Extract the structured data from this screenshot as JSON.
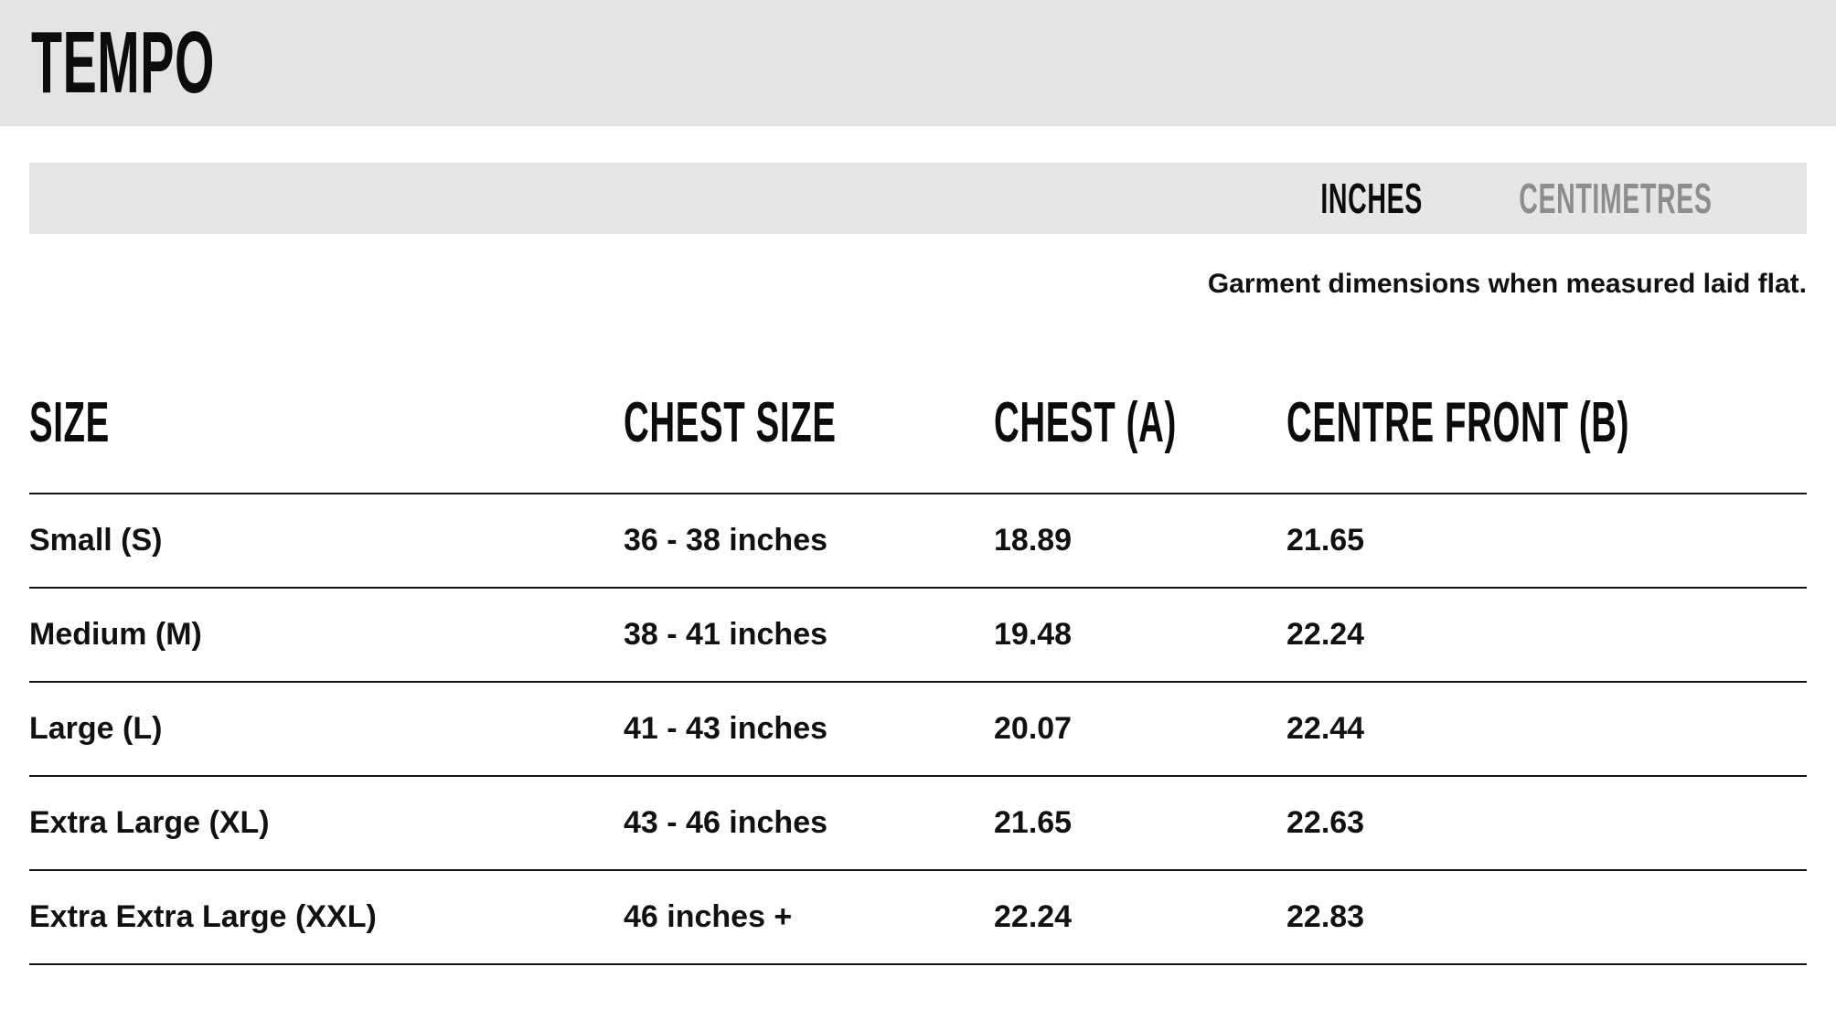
{
  "page": {
    "brand": "TEMPO"
  },
  "unit_toggle": {
    "options": [
      {
        "label": "INCHES",
        "active": true
      },
      {
        "label": "CENTIMETRES",
        "active": false
      }
    ]
  },
  "note": "Garment dimensions when measured laid flat.",
  "size_table": {
    "columns": [
      "SIZE",
      "CHEST SIZE",
      "CHEST (A)",
      "CENTRE FRONT (B)"
    ],
    "rows": [
      [
        "Small (S)",
        "36 - 38 inches",
        "18.89",
        "21.65"
      ],
      [
        "Medium (M)",
        "38 - 41 inches",
        "19.48",
        "22.24"
      ],
      [
        "Large (L)",
        "41 - 43 inches",
        "20.07",
        "22.44"
      ],
      [
        "Extra Large (XL)",
        "43 - 46 inches",
        "21.65",
        "22.63"
      ],
      [
        "Extra Extra Large (XXL)",
        "46 inches +",
        "22.24",
        "22.83"
      ]
    ]
  },
  "colors": {
    "header_band_bg": "#e4e4e4",
    "toggle_bar_bg": "#e6e6e6",
    "text_primary": "#111111",
    "toggle_inactive": "#8d8d8d",
    "table_rule": "#141414"
  }
}
